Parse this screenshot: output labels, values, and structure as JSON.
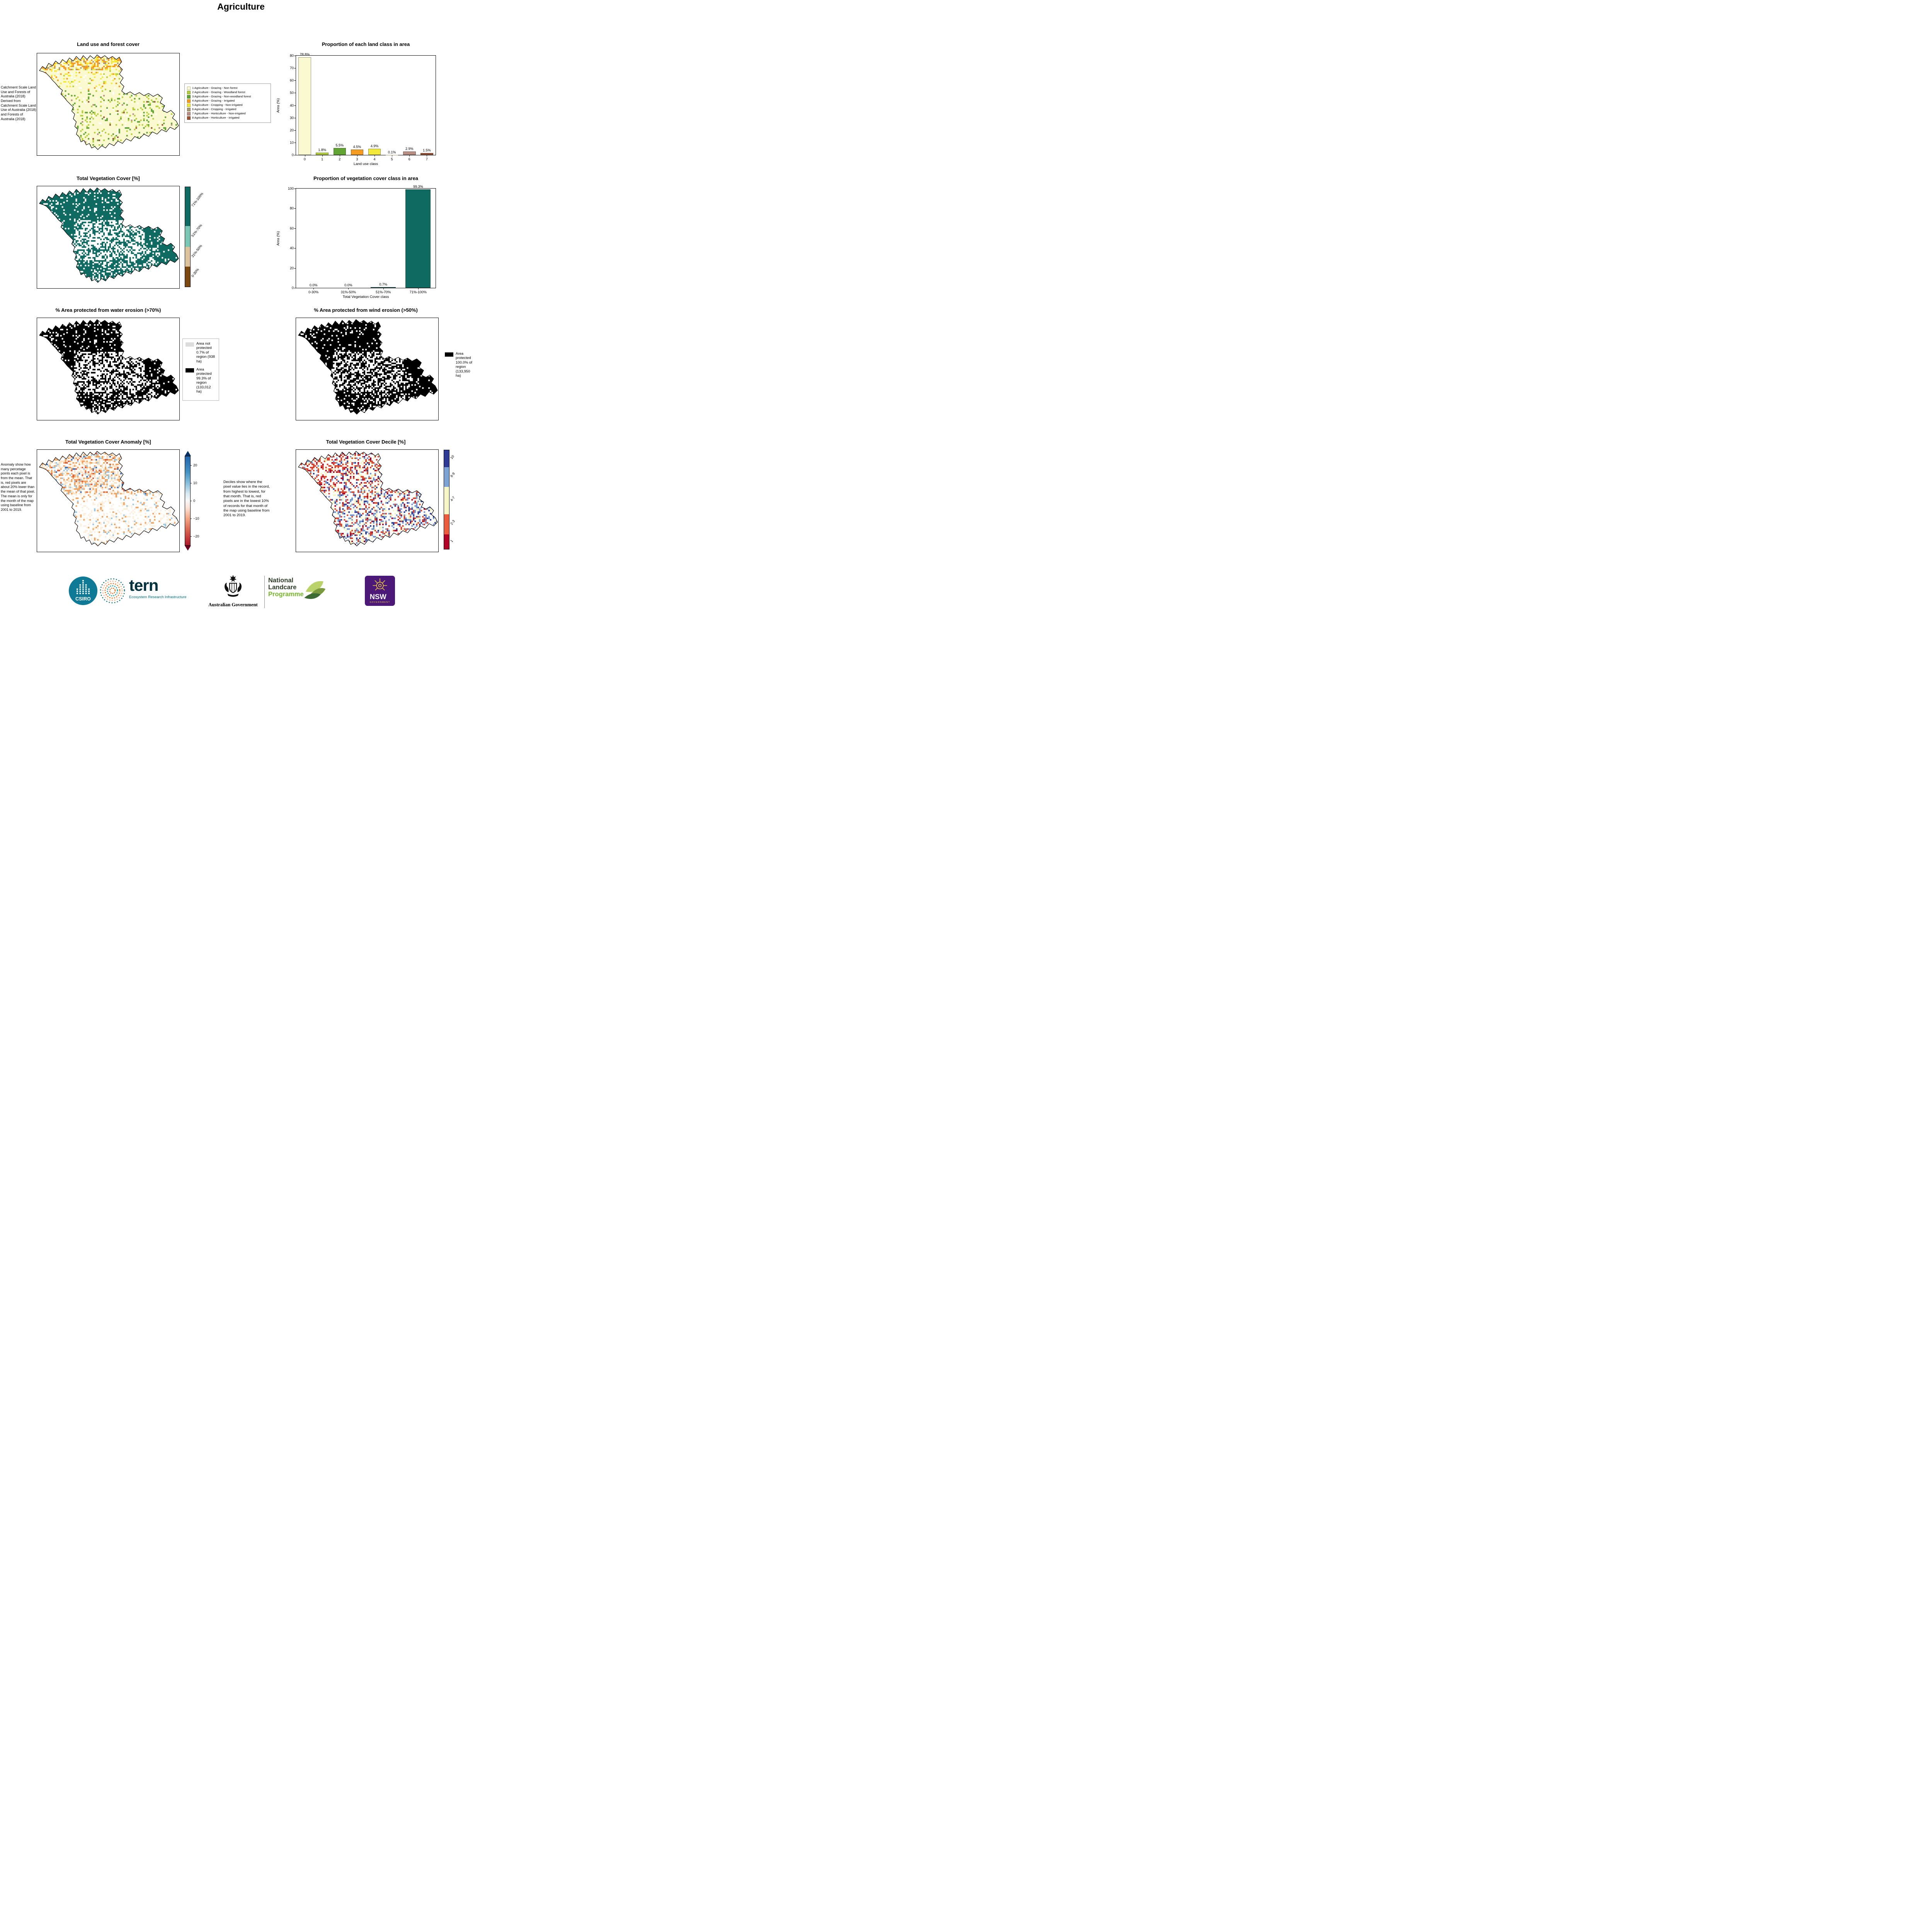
{
  "page": {
    "title": "Agriculture"
  },
  "land_use_map": {
    "title": "Land use and forest cover",
    "side_note": " Catchment Scale Land Use and Forests of Australia (2018) Derived from Catchment Scale Land Use of Australia (2018) and Forests of Australia (2018)",
    "legend": [
      {
        "label": "1 Agriculture - Grazing - Non forest",
        "color": "#fbf9d0"
      },
      {
        "label": "2 Agriculture - Grazing - Woodland forest",
        "color": "#b5cf3c"
      },
      {
        "label": "3 Agriculture - Grazing - Non-woodland forest",
        "color": "#61a433"
      },
      {
        "label": "4 Agriculture - Grazing - Irrigated",
        "color": "#f59b1f"
      },
      {
        "label": "5 Agriculture - Cropping - Non-irrigated",
        "color": "#f3e93c"
      },
      {
        "label": "6 Agriculture - Cropping - Irrigated",
        "color": "#a89a77"
      },
      {
        "label": "7 Agriculture - Horticulture - Non-irrigated",
        "color": "#b98f84"
      },
      {
        "label": "8 Agriculture - Horticulture - Irrigated",
        "color": "#9c5333"
      }
    ]
  },
  "veg_cover_map": {
    "title": "Total Vegetation Cover [%]",
    "colorbar": [
      {
        "label": "71%-100%",
        "color": "#0f6a61",
        "frac": 0.39
      },
      {
        "label": "51%-70%",
        "color": "#79c7b4",
        "frac": 0.21
      },
      {
        "label": "31%-50%",
        "color": "#dcc39a",
        "frac": 0.2
      },
      {
        "label": "0-30%",
        "color": "#7b480f",
        "frac": 0.2
      }
    ]
  },
  "water_erosion_map": {
    "title": "% Area protected from water erosion (>70%)",
    "legend": [
      {
        "label": "Area not protected 0.7% of region (938 ha)",
        "color": "#dcdcdc"
      },
      {
        "label": "Area protected 99.3% of region (133,012 ha)",
        "color": "#000000"
      }
    ]
  },
  "wind_erosion_map": {
    "title": "% Area protected from wind erosion (>50%)",
    "legend": [
      {
        "label": "Area protected 100.0% of region (133,950 ha)",
        "color": "#000000"
      }
    ]
  },
  "anomaly_map": {
    "title": "Total Vegetation Cover Anomaly [%]",
    "side_note": "Anomaly show how many percetage points each pixel is from the mean. That is, red pixels are about 20% lower than the mean of that pixel. The mean is only for the month of the map using baseline from 2001 to 2019.",
    "colorbar_ticks": [
      "20",
      "10",
      "0",
      "−10",
      "−20"
    ]
  },
  "decile_map": {
    "title": "Total Vegetation Cover Decile [%]",
    "side_note": "Deciles show where the pixel value lies in the record, from highest to lowest, for that month. That is, red pixels are in the lowest 10% of records for that month of the map using baseline from 2001 to 2019.",
    "colorbar": [
      {
        "label": "10",
        "color": "#2d3a96",
        "frac": 0.17
      },
      {
        "label": "8-9",
        "color": "#7ba3d4",
        "frac": 0.2
      },
      {
        "label": "4-7",
        "color": "#f7f6c5",
        "frac": 0.28
      },
      {
        "label": "2-3",
        "color": "#ec5c3a",
        "frac": 0.2
      },
      {
        "label": "1",
        "color": "#b40426",
        "frac": 0.15
      }
    ]
  },
  "chart_data": [
    {
      "type": "bar",
      "title": "Proportion of each land class in area",
      "xlabel": "Land use class",
      "ylabel": "Area (%)",
      "ylim": [
        0,
        80
      ],
      "yticks": [
        0,
        10,
        20,
        30,
        40,
        50,
        60,
        70,
        80
      ],
      "categories": [
        "0",
        "1",
        "2",
        "3",
        "4",
        "5",
        "6",
        "7"
      ],
      "values": [
        78.8,
        1.8,
        5.5,
        4.5,
        4.9,
        0.1,
        2.9,
        1.5
      ],
      "bar_labels": [
        "78.8%",
        "1.8%",
        "5.5%",
        "4.5%",
        "4.9%",
        "0.1%",
        "2.9%",
        "1.5%"
      ],
      "bar_colors": [
        "#fbf9d0",
        "#b5cf3c",
        "#61a433",
        "#f59b1f",
        "#f3e93c",
        "#a89a77",
        "#b98f84",
        "#9c5333"
      ],
      "legend_position": "none",
      "grid": false
    },
    {
      "type": "bar",
      "title": "Proportion of vegetation cover class in area",
      "xlabel": "Total Vegetation Cover class",
      "ylabel": "Area (%)",
      "ylim": [
        0,
        100
      ],
      "yticks": [
        0,
        20,
        40,
        60,
        80,
        100
      ],
      "categories": [
        "0-30%",
        "31%-50%",
        "51%-70%",
        "71%-100%"
      ],
      "values": [
        0.0,
        0.0,
        0.7,
        99.3
      ],
      "bar_labels": [
        "0.0%",
        "0.0%",
        "0.7%",
        "99.3%"
      ],
      "bar_colors": [
        "#0f6a61",
        "#0f6a61",
        "#0f6a61",
        "#0f6a61"
      ],
      "legend_position": "none",
      "grid": false
    }
  ],
  "footer": {
    "csiro_label": "CSIRO",
    "tern_name": "tern",
    "tern_tagline": "Ecosystem Research Infrastructure",
    "aus_gov_label": "Australian Government",
    "landcare_line1": "National",
    "landcare_line2": "Landcare",
    "landcare_line3": "Programme",
    "nsw_name": "NSW",
    "nsw_sub": "GOVERNMENT"
  }
}
